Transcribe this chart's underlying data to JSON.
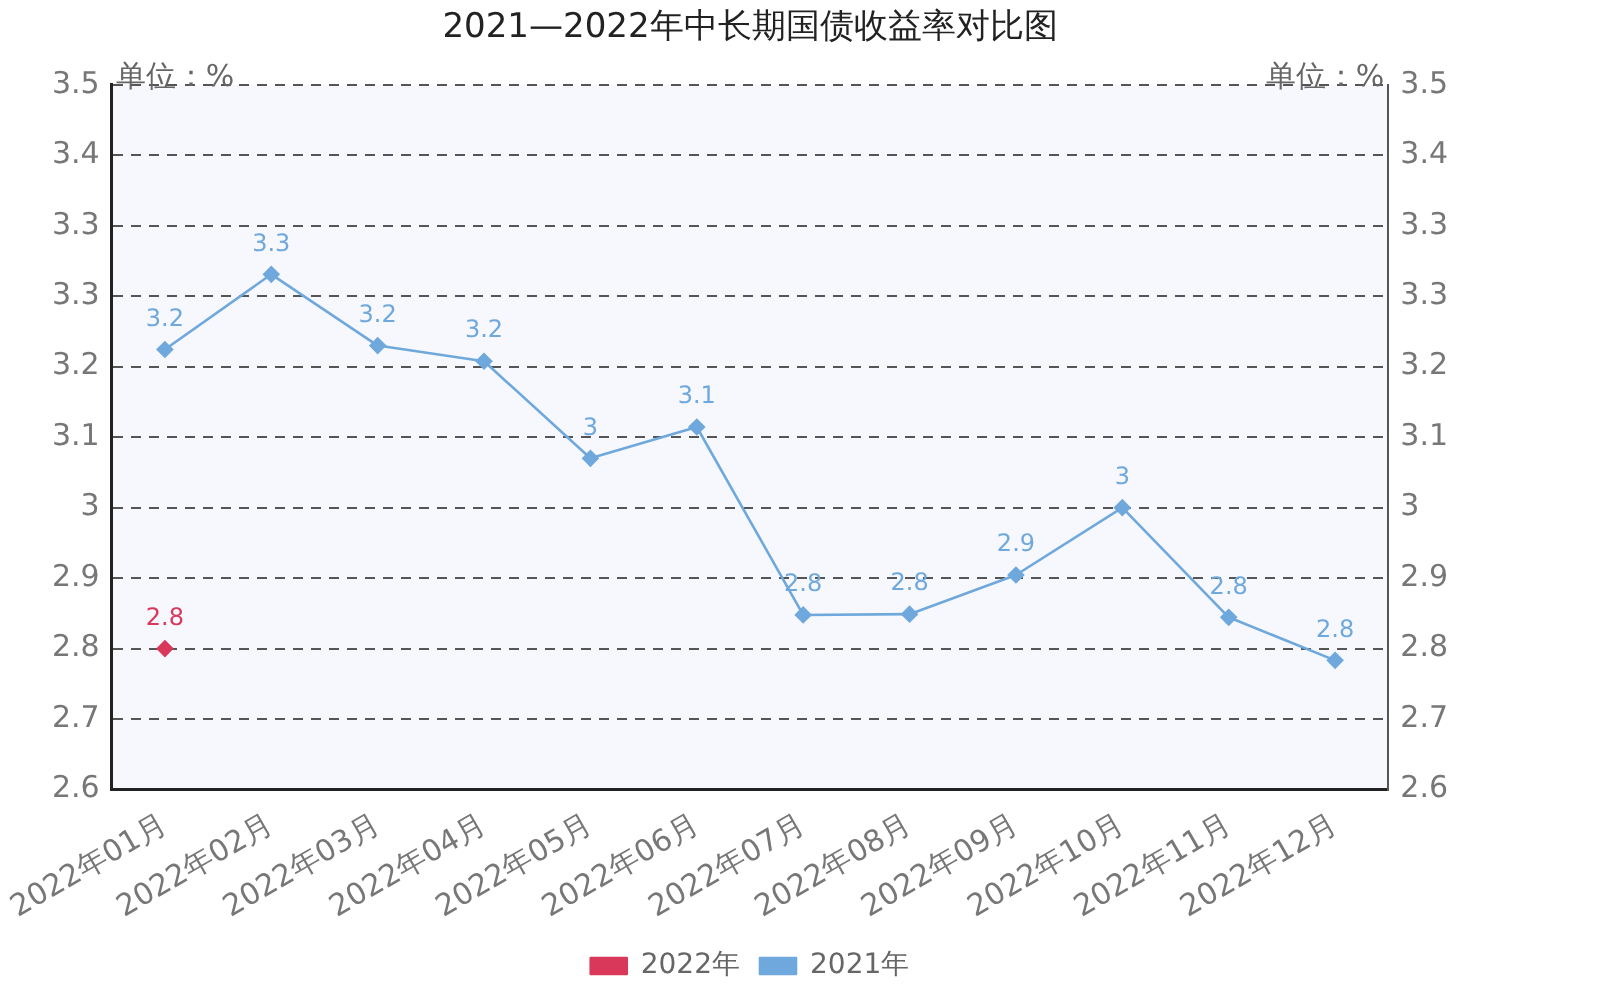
{
  "chart_data": {
    "type": "line",
    "title": "2021—2022年中长期国债收益率对比图",
    "ylabel": "单位：%",
    "y2label": "单位：%",
    "categories": [
      "2022年01月",
      "2022年02月",
      "2022年03月",
      "2022年04月",
      "2022年05月",
      "2022年06月",
      "2022年07月",
      "2022年08月",
      "2022年09月",
      "2022年10月",
      "2022年11月",
      "2022年12月"
    ],
    "series": [
      {
        "name": "2022年",
        "color": "#d9385a",
        "values": [
          2.805,
          null,
          null,
          null,
          null,
          null,
          null,
          null,
          null,
          null,
          null,
          null
        ],
        "value_labels": [
          "2.8",
          null,
          null,
          null,
          null,
          null,
          null,
          null,
          null,
          null,
          null,
          null
        ]
      },
      {
        "name": "2021年",
        "color": "#6fa8dc",
        "values": [
          3.187,
          3.283,
          3.192,
          3.172,
          3.048,
          3.088,
          2.848,
          2.849,
          2.899,
          2.985,
          2.845,
          2.79
        ],
        "value_labels": [
          "3.2",
          "3.3",
          "3.2",
          "3.2",
          "3",
          "3.1",
          "2.8",
          "2.8",
          "2.9",
          "3",
          "2.8",
          "2.8"
        ]
      }
    ],
    "ylim": [
      2.625,
      3.525
    ],
    "yticks": [
      {
        "value": 2.625,
        "label": "2.6"
      },
      {
        "value": 2.715,
        "label": "2.7"
      },
      {
        "value": 2.805,
        "label": "2.8"
      },
      {
        "value": 2.895,
        "label": "2.9"
      },
      {
        "value": 2.985,
        "label": "3"
      },
      {
        "value": 3.075,
        "label": "3.1"
      },
      {
        "value": 3.165,
        "label": "3.2"
      },
      {
        "value": 3.255,
        "label": "3.3"
      },
      {
        "value": 3.345,
        "label": "3.3"
      },
      {
        "value": 3.435,
        "label": "3.4"
      },
      {
        "value": 3.525,
        "label": "3.5"
      }
    ],
    "y2lim": [
      2.625,
      3.525
    ],
    "y2ticks": [
      {
        "value": 2.625,
        "label": "2.6"
      },
      {
        "value": 2.715,
        "label": "2.7"
      },
      {
        "value": 2.805,
        "label": "2.8"
      },
      {
        "value": 2.895,
        "label": "2.9"
      },
      {
        "value": 2.985,
        "label": "3"
      },
      {
        "value": 3.075,
        "label": "3.1"
      },
      {
        "value": 3.165,
        "label": "3.2"
      },
      {
        "value": 3.255,
        "label": "3.3"
      },
      {
        "value": 3.345,
        "label": "3.3"
      },
      {
        "value": 3.435,
        "label": "3.4"
      },
      {
        "value": 3.525,
        "label": "3.5"
      }
    ],
    "grid": "y",
    "legend": "bottom",
    "marker": "diamond",
    "line_style": "solid"
  }
}
